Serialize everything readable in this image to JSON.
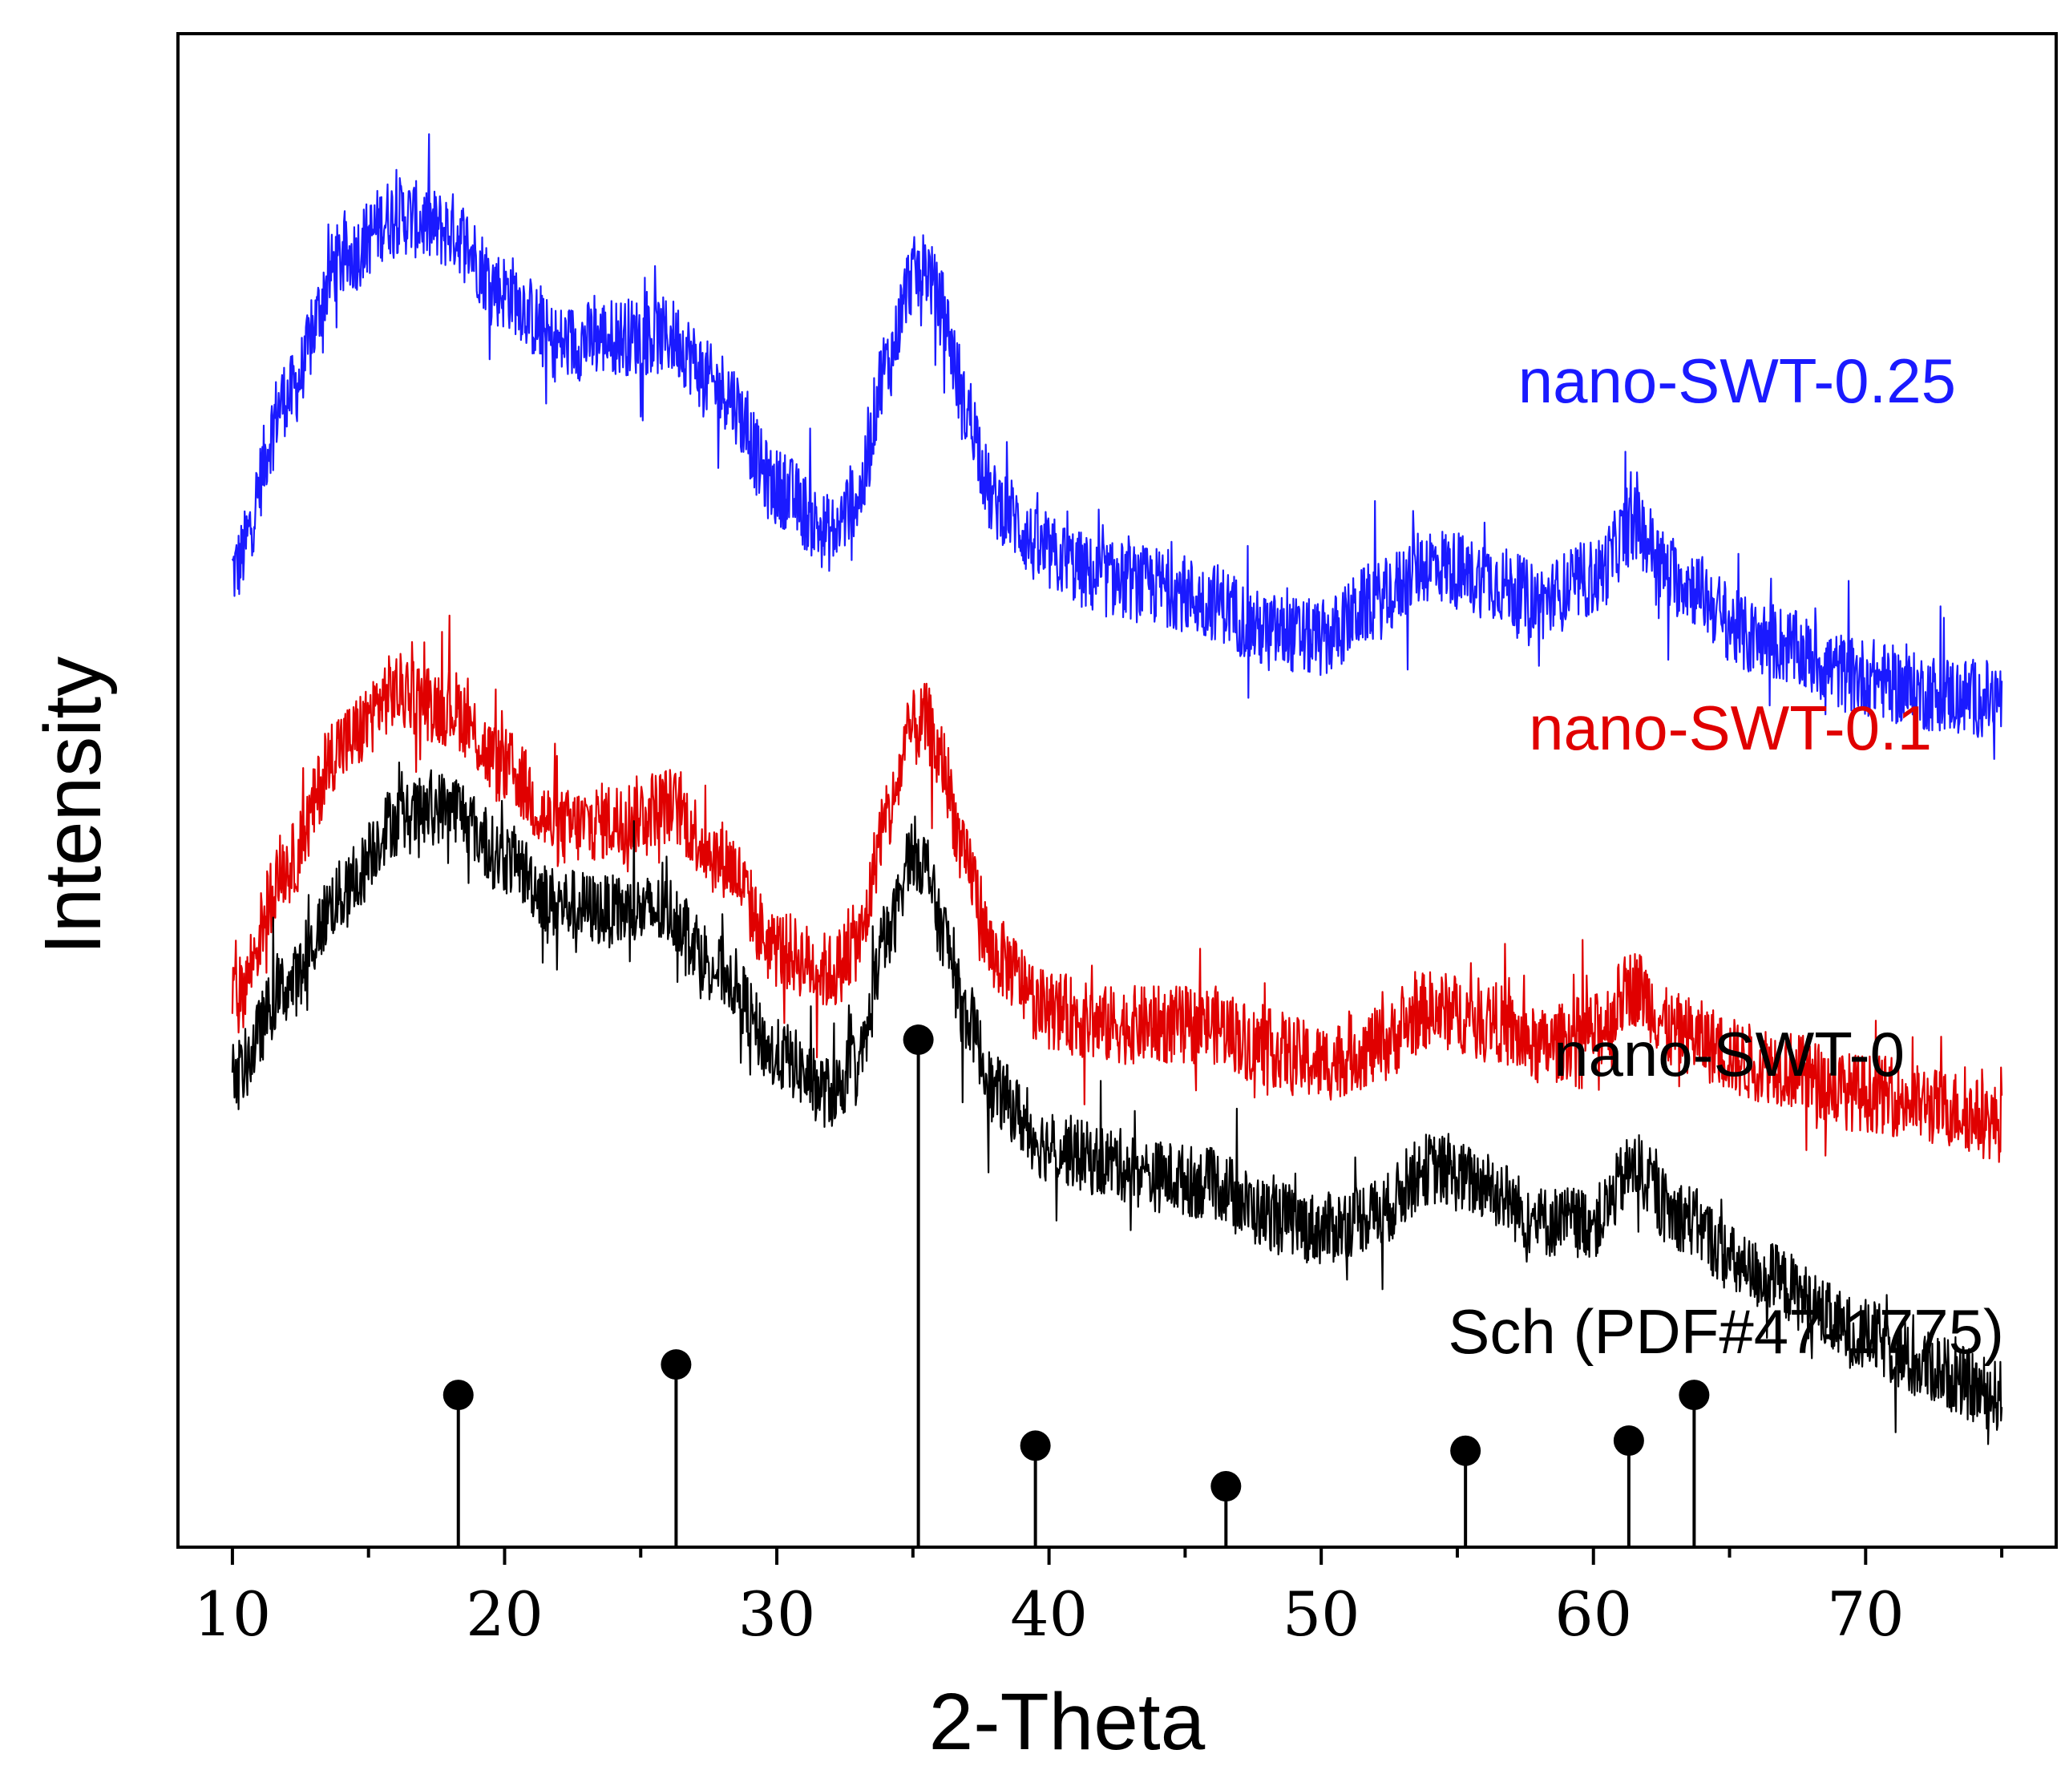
{
  "chart_data": {
    "type": "line",
    "title": "",
    "xlabel": "2-Theta",
    "ylabel": "Intensity",
    "xlim": [
      8,
      77
    ],
    "xticks": [
      10,
      20,
      30,
      40,
      50,
      60,
      70
    ],
    "ylim": [
      0,
      100
    ],
    "yticks_shown": false,
    "grid": false,
    "legend": "inline labels at right of each curve",
    "series": [
      {
        "name": "nano-SWT-0.25",
        "color": "#1a1aff",
        "offset": 56,
        "noise": 2.6,
        "points": [
          [
            10,
            8.5
          ],
          [
            12,
            20
          ],
          [
            14,
            29
          ],
          [
            16,
            32
          ],
          [
            18,
            31
          ],
          [
            20,
            27
          ],
          [
            22,
            23.5
          ],
          [
            24,
            24
          ],
          [
            26,
            24
          ],
          [
            28,
            20.5
          ],
          [
            30,
            14
          ],
          [
            32,
            11
          ],
          [
            33,
            13.5
          ],
          [
            34,
            22
          ],
          [
            35,
            28
          ],
          [
            35.5,
            28.5
          ],
          [
            36,
            26
          ],
          [
            37,
            19
          ],
          [
            38,
            13
          ],
          [
            40,
            9.5
          ],
          [
            42,
            8
          ],
          [
            44,
            7.5
          ],
          [
            46,
            6.5
          ],
          [
            48,
            4.5
          ],
          [
            50,
            4
          ],
          [
            52,
            6.5
          ],
          [
            54,
            9
          ],
          [
            56,
            8
          ],
          [
            58,
            6.5
          ],
          [
            60,
            8
          ],
          [
            61.5,
            11.5
          ],
          [
            63,
            8
          ],
          [
            66,
            4
          ],
          [
            70,
            1.5
          ],
          [
            72,
            0.5
          ],
          [
            75,
            0
          ]
        ]
      },
      {
        "name": "nano-SWT-0.1",
        "color": "#e00000",
        "offset": 33,
        "noise": 2.6,
        "points": [
          [
            10,
            3
          ],
          [
            12,
            12
          ],
          [
            14,
            20
          ],
          [
            16,
            23.5
          ],
          [
            18,
            22.5
          ],
          [
            20,
            18.5
          ],
          [
            22,
            14.5
          ],
          [
            24,
            15
          ],
          [
            26,
            16
          ],
          [
            28,
            12.5
          ],
          [
            30,
            6.5
          ],
          [
            32,
            5
          ],
          [
            33,
            7
          ],
          [
            34,
            15
          ],
          [
            35,
            21
          ],
          [
            35.5,
            21.5
          ],
          [
            36,
            19
          ],
          [
            37,
            12
          ],
          [
            38,
            6
          ],
          [
            40,
            2.5
          ],
          [
            42,
            1.5
          ],
          [
            44,
            1.5
          ],
          [
            46,
            1.5
          ],
          [
            48,
            0
          ],
          [
            50,
            -1
          ],
          [
            52,
            0
          ],
          [
            54,
            2.5
          ],
          [
            56,
            2
          ],
          [
            58,
            0
          ],
          [
            60,
            1
          ],
          [
            61.5,
            4
          ],
          [
            63,
            1
          ],
          [
            66,
            -1
          ],
          [
            70,
            -3
          ],
          [
            73,
            -4
          ],
          [
            75,
            -5
          ]
        ]
      },
      {
        "name": "nano-SWT-0",
        "color": "#000000",
        "offset": 10,
        "noise": 2.4,
        "points": [
          [
            10,
            21
          ],
          [
            12,
            27
          ],
          [
            14,
            33
          ],
          [
            16,
            38
          ],
          [
            18,
            39
          ],
          [
            20,
            35.5
          ],
          [
            22,
            32.5
          ],
          [
            24,
            32
          ],
          [
            26,
            32
          ],
          [
            28,
            28
          ],
          [
            30,
            22.5
          ],
          [
            32,
            20
          ],
          [
            33,
            22
          ],
          [
            34,
            30
          ],
          [
            35,
            36
          ],
          [
            35.5,
            35
          ],
          [
            36,
            31
          ],
          [
            37,
            25
          ],
          [
            38,
            20
          ],
          [
            40,
            16.5
          ],
          [
            42,
            15.5
          ],
          [
            44,
            14.5
          ],
          [
            46,
            14
          ],
          [
            48,
            12
          ],
          [
            50,
            11
          ],
          [
            52,
            12
          ],
          [
            54,
            15
          ],
          [
            56,
            14
          ],
          [
            58,
            11.5
          ],
          [
            60,
            11.5
          ],
          [
            61.5,
            15
          ],
          [
            63,
            12
          ],
          [
            66,
            8
          ],
          [
            70,
            4
          ],
          [
            72,
            2
          ],
          [
            75,
            0
          ]
        ]
      }
    ],
    "reference": {
      "name": "Sch (PDF#47-1775)",
      "type": "stick",
      "peaks": [
        {
          "x": 18.3,
          "intensity": 30
        },
        {
          "x": 26.3,
          "intensity": 36
        },
        {
          "x": 35.2,
          "intensity": 100
        },
        {
          "x": 39.5,
          "intensity": 20
        },
        {
          "x": 46.5,
          "intensity": 12
        },
        {
          "x": 55.3,
          "intensity": 19
        },
        {
          "x": 61.3,
          "intensity": 21
        },
        {
          "x": 63.7,
          "intensity": 30
        }
      ]
    }
  }
}
